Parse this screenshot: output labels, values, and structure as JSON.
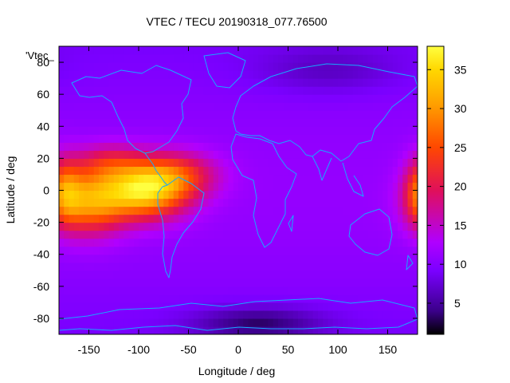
{
  "title": "VTEC / TECU 20190318_077.76500",
  "dataset_key": "'Vtec_",
  "chart_data": {
    "type": "heatmap",
    "title": "VTEC / TECU 20190318_077.76500",
    "xlabel": "Longitude / deg",
    "ylabel": "Latitude / deg",
    "xlim": [
      -180,
      180
    ],
    "ylim": [
      -90,
      90
    ],
    "x_ticks": [
      -150,
      -100,
      -50,
      0,
      50,
      100,
      150
    ],
    "y_ticks": [
      -80,
      -60,
      -40,
      -20,
      0,
      20,
      40,
      60,
      80
    ],
    "colorbar": {
      "min": 1,
      "max": 38,
      "ticks": [
        5,
        10,
        15,
        20,
        25,
        30,
        35
      ],
      "colormap": [
        "#000000",
        "#3a0088",
        "#7a00ff",
        "#b000ff",
        "#e0105a",
        "#ff4800",
        "#ffa000",
        "#ffd800",
        "#ffff40"
      ]
    },
    "coastline_color": "#18a8ff",
    "background_level": 9,
    "peaks": [
      {
        "lon": -95,
        "lat": 0,
        "amp": 23,
        "sigma_lon": 30,
        "sigma_lat": 12
      },
      {
        "lon": -150,
        "lat": -7,
        "amp": 17,
        "sigma_lon": 25,
        "sigma_lat": 14
      },
      {
        "lon": -60,
        "lat": 10,
        "amp": 10,
        "sigma_lon": 28,
        "sigma_lat": 10
      },
      {
        "lon": -130,
        "lat": 18,
        "amp": 7,
        "sigma_lon": 25,
        "sigma_lat": 8
      },
      {
        "lon": 185,
        "lat": 0,
        "amp": 12,
        "sigma_lon": 12,
        "sigma_lat": 14
      },
      {
        "lon": 20,
        "lat": -83,
        "amp": -6,
        "sigma_lon": 45,
        "sigma_lat": 7
      },
      {
        "lon": 90,
        "lat": 75,
        "amp": -3,
        "sigma_lon": 50,
        "sigma_lat": 10
      }
    ]
  }
}
